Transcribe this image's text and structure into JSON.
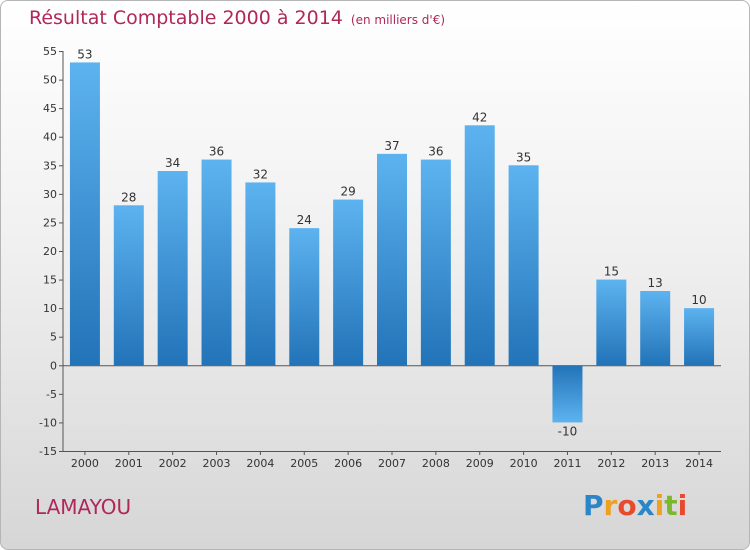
{
  "chart_data": {
    "type": "bar",
    "title": "Résultat Comptable 2000 à 2014",
    "subtitle": "(en milliers d'€)",
    "categories": [
      "2000",
      "2001",
      "2002",
      "2003",
      "2004",
      "2005",
      "2006",
      "2007",
      "2008",
      "2009",
      "2010",
      "2011",
      "2012",
      "2013",
      "2014"
    ],
    "values": [
      53,
      28,
      34,
      36,
      32,
      24,
      29,
      37,
      36,
      42,
      35,
      -10,
      15,
      13,
      10
    ],
    "data_labels": [
      "53",
      "28",
      "34",
      "36",
      "32",
      "24",
      "29",
      "37",
      "36",
      "42",
      "35",
      "-10",
      "15",
      "13",
      "10"
    ],
    "ylim": [
      -15,
      55
    ],
    "yticks": [
      55,
      50,
      45,
      40,
      35,
      30,
      25,
      20,
      15,
      10,
      5,
      0,
      -5,
      -10,
      -15
    ],
    "ytick_labels": [
      "55",
      "50",
      "45",
      "40",
      "35",
      "30",
      "25",
      "20",
      "15",
      "10",
      "5",
      "0",
      "-5",
      "-10",
      "-15"
    ],
    "xlabel": "",
    "ylabel": "",
    "grid": false,
    "bar_color": "#3a8fd8"
  },
  "commune": "LAMAYOU",
  "logo": {
    "letters": [
      "P",
      "r",
      "o",
      "x",
      "i",
      "t",
      "i"
    ],
    "colors": [
      "#2b86c9",
      "#f0a020",
      "#e84a2e",
      "#2b86c9",
      "#f0a020",
      "#7cb82f",
      "#e84a2e"
    ]
  }
}
